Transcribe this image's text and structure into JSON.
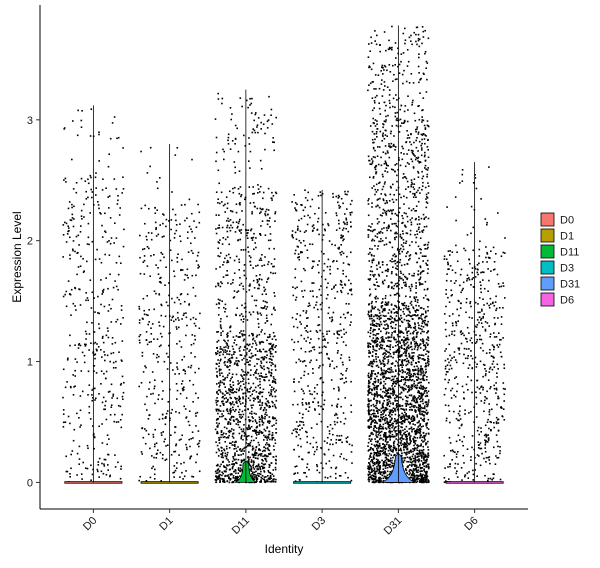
{
  "chart_data": {
    "type": "violin",
    "xlabel": "Identity",
    "ylabel": "Expression Level",
    "ylim": [
      -0.22,
      3.95
    ],
    "yticks": [
      0,
      1,
      2,
      3
    ],
    "grid": false,
    "legend_position": "right",
    "categories": [
      "D0",
      "D1",
      "D11",
      "D3",
      "D31",
      "D6"
    ],
    "series": [
      {
        "name": "D0",
        "color": "#F8766D",
        "max": 3.12,
        "expressing_range": [
          0.0,
          2.55
        ],
        "zero_violin_halfwidth": 0.01,
        "n_points": 420
      },
      {
        "name": "D1",
        "color": "#B79F00",
        "max": 2.8,
        "expressing_range": [
          0.0,
          2.3
        ],
        "zero_violin_halfwidth": 0.01,
        "n_points": 420
      },
      {
        "name": "D11",
        "color": "#00BA38",
        "max": 3.25,
        "expressing_range": [
          0.0,
          2.45
        ],
        "zero_violin_halfwidth": 0.28,
        "n_points": 1650
      },
      {
        "name": "D3",
        "color": "#00BFC4",
        "max": 2.42,
        "expressing_range": [
          0.0,
          2.3
        ],
        "zero_violin_halfwidth": 0.01,
        "n_points": 560
      },
      {
        "name": "D31",
        "color": "#619CFF",
        "max": 3.78,
        "expressing_range": [
          0.0,
          3.0
        ],
        "zero_violin_halfwidth": 0.45,
        "n_points": 3300
      },
      {
        "name": "D6",
        "color": "#F564E3",
        "max": 2.65,
        "expressing_range": [
          0.0,
          1.95
        ],
        "zero_violin_halfwidth": 0.01,
        "n_points": 560
      }
    ],
    "legend": {
      "entries": [
        "D0",
        "D1",
        "D11",
        "D3",
        "D31",
        "D6"
      ]
    }
  }
}
